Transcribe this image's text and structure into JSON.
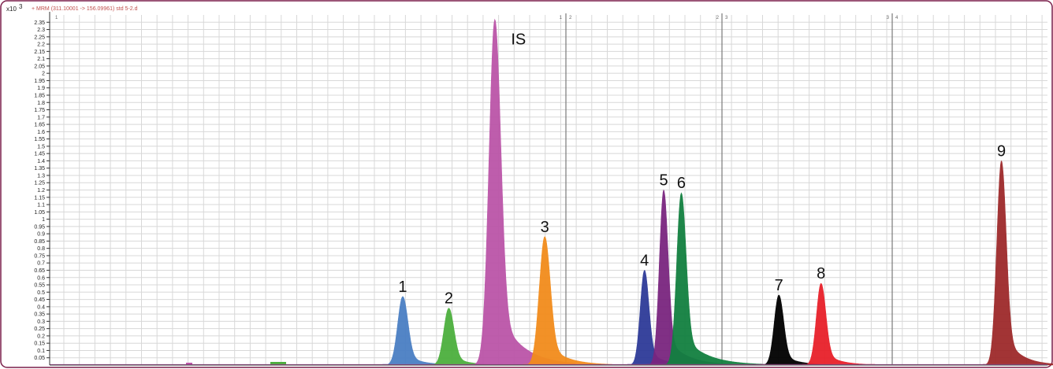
{
  "chart_data": {
    "type": "area",
    "title": "+ MRM (311.10001 -> 156.09961) std 5-2.d",
    "y_multiplier_base": "x10",
    "y_multiplier_exp": "3",
    "ylim": [
      0.05,
      2.4
    ],
    "y_ticks": [
      "0.05",
      "0.1",
      "0.15",
      "0.2",
      "0.25",
      "0.3",
      "0.35",
      "0.4",
      "0.45",
      "0.5",
      "0.55",
      "0.6",
      "0.65",
      "0.7",
      "0.75",
      "0.8",
      "0.85",
      "0.9",
      "0.95",
      "1",
      "1.05",
      "1.1",
      "1.15",
      "1.2",
      "1.25",
      "1.3",
      "1.35",
      "1.4",
      "1.45",
      "1.5",
      "1.55",
      "1.6",
      "1.65",
      "1.7",
      "1.75",
      "1.8",
      "1.85",
      "1.9",
      "1.95",
      "2",
      "2.05",
      "2.1",
      "2.15",
      "2.2",
      "2.25",
      "2.3",
      "2.35"
    ],
    "segment_labels": [
      "1",
      "1",
      "2",
      "2",
      "3",
      "3",
      "4"
    ],
    "peaks": [
      {
        "label": "1",
        "color": "#4a7fc4",
        "center": 0.46,
        "height": 0.47,
        "width": 0.0065,
        "tail": 0.02
      },
      {
        "label": "2",
        "color": "#4caf3e",
        "center": 0.52,
        "height": 0.39,
        "width": 0.0065,
        "tail": 0.02
      },
      {
        "label": "IS",
        "color": "#bb55a8",
        "center": 0.58,
        "height": 2.37,
        "width": 0.0075,
        "tail": 0.03
      },
      {
        "label": "3",
        "color": "#f28c1c",
        "center": 0.645,
        "height": 0.88,
        "width": 0.007,
        "tail": 0.025
      },
      {
        "label": "4",
        "color": "#2e3b98",
        "center": 0.775,
        "height": 0.65,
        "width": 0.0055,
        "tail": 0.02
      },
      {
        "label": "5",
        "color": "#7a257f",
        "center": 0.8,
        "height": 1.2,
        "width": 0.0055,
        "tail": 0.025
      },
      {
        "label": "6",
        "color": "#128040",
        "center": 0.823,
        "height": 1.18,
        "width": 0.006,
        "tail": 0.03
      },
      {
        "label": "7",
        "color": "#000000",
        "center": 0.95,
        "height": 0.48,
        "width": 0.006,
        "tail": 0.02
      },
      {
        "label": "8",
        "color": "#e8202a",
        "center": 1.005,
        "height": 0.56,
        "width": 0.006,
        "tail": 0.02
      },
      {
        "label": "9",
        "color": "#9e2a2b",
        "center": 1.24,
        "height": 1.4,
        "width": 0.006,
        "tail": 0.02
      }
    ],
    "grid": true,
    "legend": "none"
  },
  "colors": {
    "frame": "#7a1f4a",
    "grid": "#d8d8d8",
    "axis": "#333333",
    "divider": "#7a7a7a",
    "title": "#c0504d"
  }
}
